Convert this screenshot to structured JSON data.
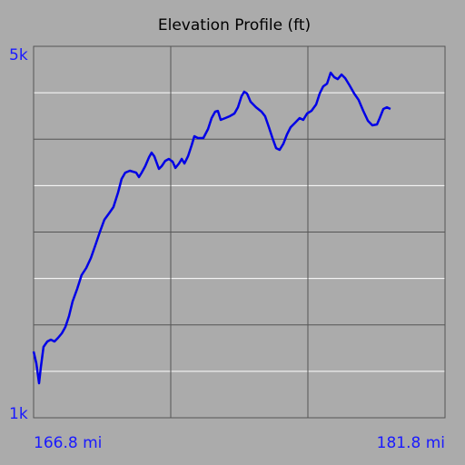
{
  "chart_data": {
    "type": "line",
    "title": "Elevation Profile (ft)",
    "x": [
      166.8,
      166.9,
      167.0,
      167.06,
      167.16,
      167.3,
      167.43,
      167.56,
      167.69,
      167.83,
      167.96,
      168.09,
      168.22,
      168.39,
      168.55,
      168.72,
      168.89,
      169.05,
      169.22,
      169.38,
      169.55,
      169.71,
      169.88,
      170.01,
      170.14,
      170.31,
      170.54,
      170.64,
      170.74,
      170.87,
      171.01,
      171.1,
      171.2,
      171.37,
      171.47,
      171.6,
      171.73,
      171.87,
      171.97,
      172.1,
      172.2,
      172.3,
      172.43,
      172.56,
      172.66,
      172.79,
      172.99,
      173.16,
      173.29,
      173.42,
      173.52,
      173.62,
      173.79,
      173.95,
      174.12,
      174.25,
      174.38,
      174.48,
      174.58,
      174.71,
      174.91,
      175.11,
      175.24,
      175.38,
      175.51,
      175.64,
      175.77,
      175.91,
      176.04,
      176.17,
      176.34,
      176.5,
      176.63,
      176.77,
      176.93,
      177.1,
      177.23,
      177.36,
      177.5,
      177.63,
      177.76,
      177.89,
      178.03,
      178.16,
      178.32,
      178.49,
      178.65,
      178.82,
      178.99,
      179.15,
      179.32,
      179.42,
      179.55,
      179.68,
      179.81
    ],
    "series": [
      {
        "color": "#0000e6",
        "values": [
          1714,
          1587,
          1372,
          1538,
          1763,
          1822,
          1841,
          1822,
          1861,
          1910,
          1978,
          2095,
          2252,
          2389,
          2535,
          2614,
          2721,
          2858,
          3005,
          3132,
          3200,
          3269,
          3425,
          3572,
          3640,
          3660,
          3640,
          3592,
          3640,
          3709,
          3806,
          3855,
          3816,
          3680,
          3709,
          3767,
          3787,
          3758,
          3690,
          3738,
          3787,
          3738,
          3816,
          3934,
          4032,
          4012,
          4012,
          4110,
          4227,
          4296,
          4305,
          4208,
          4227,
          4247,
          4276,
          4344,
          4462,
          4511,
          4491,
          4403,
          4344,
          4296,
          4247,
          4129,
          4012,
          3904,
          3885,
          3953,
          4051,
          4129,
          4178,
          4227,
          4208,
          4276,
          4305,
          4374,
          4491,
          4569,
          4598,
          4716,
          4667,
          4647,
          4696,
          4657,
          4579,
          4491,
          4422,
          4305,
          4198,
          4149,
          4159,
          4227,
          4325,
          4344,
          4325
        ]
      }
    ],
    "xlim": [
      166.8,
      181.8
    ],
    "ylim": [
      1000,
      5000
    ],
    "xticks": [
      {
        "value": 166.8,
        "label": "166.8 mi"
      },
      {
        "value": 181.8,
        "label": "181.8 mi"
      }
    ],
    "yticks": [
      {
        "value": 1000,
        "label": "1k"
      },
      {
        "value": 5000,
        "label": "5k"
      }
    ],
    "xgrid": [
      171.8,
      176.8
    ],
    "ygrid_major": [
      2000,
      3000,
      4000
    ],
    "ygrid_minor": [
      1500,
      2500,
      3500,
      4500
    ]
  }
}
